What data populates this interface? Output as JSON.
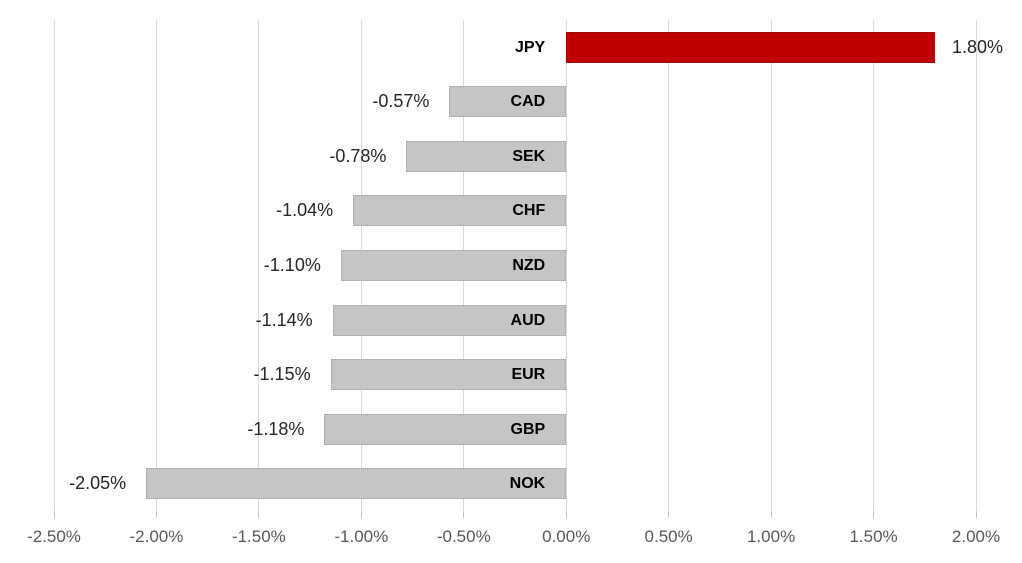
{
  "chart_data": {
    "type": "bar",
    "orientation": "horizontal",
    "title": "",
    "categories": [
      "JPY",
      "CAD",
      "SEK",
      "CHF",
      "NZD",
      "AUD",
      "EUR",
      "GBP",
      "NOK"
    ],
    "values": [
      1.8,
      -0.57,
      -0.78,
      -1.04,
      -1.1,
      -1.14,
      -1.15,
      -1.18,
      -2.05
    ],
    "value_labels": [
      "1.80%",
      "-0.57%",
      "-0.78%",
      "-1.04%",
      "-1.10%",
      "-1.14%",
      "-1.15%",
      "-1.18%",
      "-2.05%"
    ],
    "x_ticks": [
      -2.5,
      -2.0,
      -1.5,
      -1.0,
      -0.5,
      0.0,
      0.5,
      1.0,
      1.5,
      2.0
    ],
    "x_tick_labels": [
      "-2.50%",
      "-2.00%",
      "-1.50%",
      "-1.00%",
      "-0.50%",
      "0.00%",
      "0.50%",
      "1.00%",
      "1.50%",
      "2.00%"
    ],
    "xlim": [
      -2.5,
      2.0
    ],
    "grid": true,
    "legend": false,
    "colors": {
      "positive_bar": "#c00000",
      "negative_bar": "#c5c5c5",
      "negative_bar_border": "#9e9e9e",
      "positive_bar_border": "#9a0a0a",
      "gridline": "#d9d9d9",
      "tick": "#bfbfbf",
      "axis_label": "#595959",
      "value_label": "#262626",
      "category_label": "#000000"
    }
  }
}
